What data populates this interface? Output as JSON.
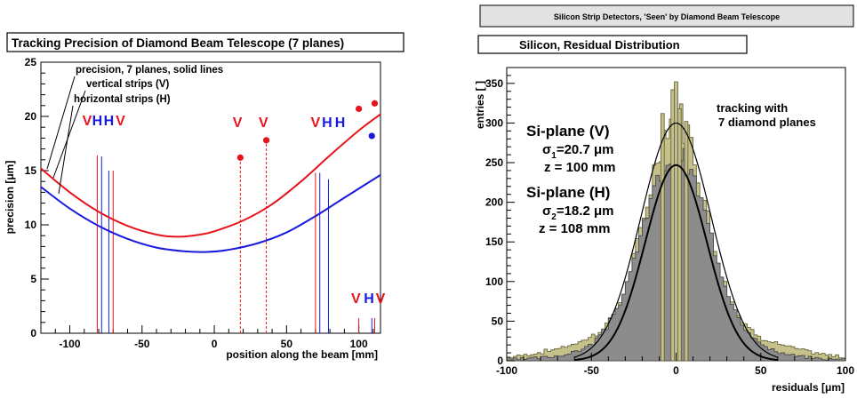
{
  "chart_data": [
    {
      "type": "line",
      "title": "Tracking Precision of Diamond Beam Telescope (7 planes)",
      "xlabel": "position along the beam [mm]",
      "ylabel": "precision [μm]",
      "xlim": [
        -120,
        115
      ],
      "ylim": [
        0,
        25
      ],
      "x_ticks": [
        -100,
        -50,
        0,
        50,
        100
      ],
      "y_ticks": [
        0,
        5,
        10,
        15,
        20,
        25
      ],
      "grid": false,
      "legend": {
        "line1": "precision, 7 planes, solid lines",
        "line2": "vertical strips (V)",
        "line3": "horizontal strips (H)"
      },
      "series": [
        {
          "color": "#e8141c",
          "points": [
            [
              -120,
              15.2
            ],
            [
              -100,
              13.0
            ],
            [
              -80,
              11.2
            ],
            [
              -60,
              9.9
            ],
            [
              -40,
              9.1
            ],
            [
              -25,
              8.9
            ],
            [
              -10,
              9.1
            ],
            [
              0,
              9.4
            ],
            [
              20,
              10.4
            ],
            [
              40,
              11.9
            ],
            [
              60,
              14.0
            ],
            [
              80,
              16.4
            ],
            [
              100,
              18.7
            ],
            [
              115,
              20.2
            ]
          ]
        },
        {
          "color": "#1a1adc",
          "points": [
            [
              -120,
              13.5
            ],
            [
              -100,
              11.5
            ],
            [
              -80,
              9.9
            ],
            [
              -60,
              8.7
            ],
            [
              -40,
              7.9
            ],
            [
              -20,
              7.55
            ],
            [
              -5,
              7.5
            ],
            [
              10,
              7.7
            ],
            [
              30,
              8.3
            ],
            [
              50,
              9.3
            ],
            [
              70,
              10.8
            ],
            [
              90,
              12.5
            ],
            [
              115,
              14.6
            ]
          ]
        }
      ],
      "planes": [
        {
          "x": -81,
          "height": 16.4,
          "color": "#e8141c",
          "dashed": false
        },
        {
          "x": -78,
          "height": 16.3,
          "color": "#1a1adc",
          "dashed": false
        },
        {
          "x": -73,
          "height": 15.0,
          "color": "#1a1adc",
          "dashed": false
        },
        {
          "x": -70,
          "height": 15.0,
          "color": "#e8141c",
          "dashed": false
        },
        {
          "x": 18,
          "height": 16.2,
          "color": "#e8141c",
          "dashed": true
        },
        {
          "x": 36,
          "height": 17.8,
          "color": "#e8141c",
          "dashed": true
        },
        {
          "x": 70,
          "height": 14.8,
          "color": "#e8141c",
          "dashed": false
        },
        {
          "x": 73,
          "height": 14.8,
          "color": "#1a1adc",
          "dashed": false
        },
        {
          "x": 79,
          "height": 14.2,
          "color": "#1a1adc",
          "dashed": false
        },
        {
          "x": 100,
          "height": 1.4,
          "color": "#e8141c",
          "dashed": false
        },
        {
          "x": 109,
          "height": 1.4,
          "color": "#1a1adc",
          "dashed": false
        },
        {
          "x": 111,
          "height": 1.4,
          "color": "#e8141c",
          "dashed": false
        }
      ],
      "markers": [
        {
          "x": 18,
          "y": 16.2,
          "color": "#e8141c"
        },
        {
          "x": 36,
          "y": 17.8,
          "color": "#e8141c"
        },
        {
          "x": 100,
          "y": 20.7,
          "color": "#e8141c"
        },
        {
          "x": 111,
          "y": 21.2,
          "color": "#e8141c"
        },
        {
          "x": 109,
          "y": 18.2,
          "color": "#1a1adc"
        }
      ],
      "annotations": [
        {
          "text": "V",
          "x": -88,
          "y": 19.2,
          "color": "#e8141c"
        },
        {
          "text": "H",
          "x": -81,
          "y": 19.2,
          "color": "#1a1adc"
        },
        {
          "text": "H",
          "x": -73,
          "y": 19.2,
          "color": "#1a1adc"
        },
        {
          "text": "V",
          "x": -65,
          "y": 19.2,
          "color": "#e8141c"
        },
        {
          "text": "V",
          "x": 16,
          "y": 19.0,
          "color": "#e8141c"
        },
        {
          "text": "V",
          "x": 34,
          "y": 19.0,
          "color": "#e8141c"
        },
        {
          "text": "V",
          "x": 70,
          "y": 19.0,
          "color": "#e8141c"
        },
        {
          "text": "H",
          "x": 78,
          "y": 19.0,
          "color": "#1a1adc"
        },
        {
          "text": "H",
          "x": 87,
          "y": 19.0,
          "color": "#1a1adc"
        },
        {
          "text": "V",
          "x": 98,
          "y": 2.8,
          "color": "#e8141c"
        },
        {
          "text": "H",
          "x": 107,
          "y": 2.8,
          "color": "#1a1adc"
        },
        {
          "text": "V",
          "x": 115,
          "y": 2.8,
          "color": "#e8141c"
        }
      ]
    },
    {
      "type": "bar",
      "header": "Silicon Strip Detectors, 'Seen' by Diamond Beam Telescope",
      "title": "Silicon, Residual Distribution",
      "xlabel": "residuals [μm]",
      "ylabel": "entries [ ]",
      "xlim": [
        -100,
        100
      ],
      "ylim": [
        0,
        370
      ],
      "x_ticks": [
        -100,
        -50,
        0,
        50,
        100
      ],
      "y_ticks": [
        0,
        50,
        100,
        150,
        200,
        250,
        300,
        350
      ],
      "grid": false,
      "histograms": [
        {
          "name": "Si-plane (V)",
          "fill": "#c6c08a",
          "stroke": "#5a5a30",
          "peak": 310,
          "sigma": 16.5,
          "center": 0,
          "tail_amp": 0.2,
          "tail_sigma": 45,
          "noise_seed": 7,
          "noise": 0.08
        },
        {
          "name": "Si-plane (H)",
          "fill": "#8c8c8c",
          "stroke": "#404040",
          "peak": 262,
          "sigma": 19.5,
          "center": 0,
          "tail_amp": 0.12,
          "tail_sigma": 40,
          "noise_seed": 3,
          "noise": 0.06
        }
      ],
      "fits": [
        {
          "peak": 300,
          "sigma": 20.7,
          "center": 0,
          "stroke": "#000000",
          "width": 1.2
        },
        {
          "peak": 247,
          "sigma": 18.2,
          "center": 0,
          "stroke": "#000000",
          "width": 2.0
        }
      ],
      "spikes": [
        {
          "x": 0,
          "y": 352
        },
        {
          "x": -2,
          "y": 342
        },
        {
          "x": 2,
          "y": 318
        },
        {
          "x": -8,
          "y": 312
        },
        {
          "x": 6,
          "y": 302
        }
      ],
      "text_blocks": {
        "v_plane": "Si-plane (V)",
        "sigma1_prefix": "σ",
        "sigma1_sub": "1",
        "sigma1_value": "=20.7 μm",
        "z1": "z = 100 mm",
        "h_plane": "Si-plane (H)",
        "sigma2_prefix": "σ",
        "sigma2_sub": "2",
        "sigma2_value": "=18.2 μm",
        "z2": "z = 108 mm",
        "tracking1": "tracking with",
        "tracking2": "7 diamond planes"
      }
    }
  ]
}
